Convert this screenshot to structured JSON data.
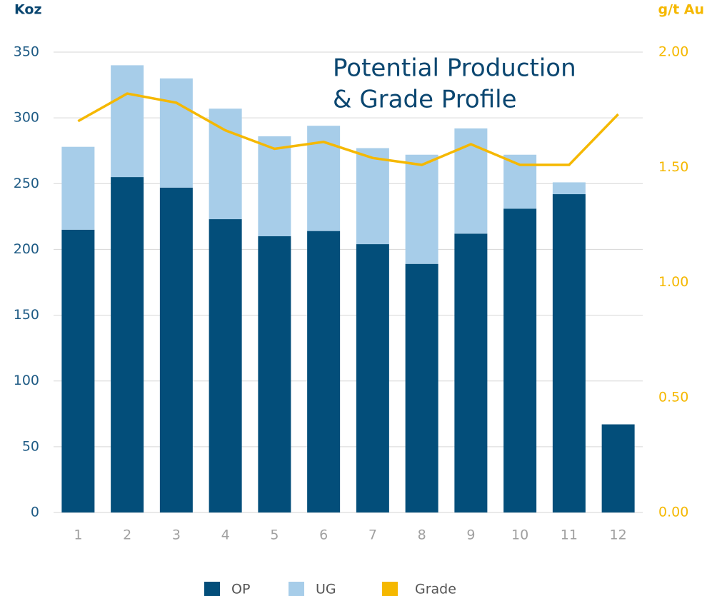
{
  "chart_data": {
    "type": "bar",
    "title": [
      "Potential Production",
      "& Grade Profile"
    ],
    "y_label": "Koz",
    "y2_label": "g/t Au",
    "categories": [
      1,
      2,
      3,
      4,
      5,
      6,
      7,
      8,
      9,
      10,
      11,
      12
    ],
    "stacked": true,
    "series": [
      {
        "name": "OP",
        "color": "#034e7a",
        "values": [
          215,
          255,
          247,
          223,
          210,
          214,
          204,
          189,
          212,
          231,
          242,
          67
        ]
      },
      {
        "name": "UG",
        "color": "#a7cde9",
        "values": [
          63,
          85,
          83,
          84,
          76,
          80,
          73,
          83,
          80,
          41,
          9,
          null
        ]
      },
      {
        "name": "Grade",
        "type": "line",
        "axis": "y2",
        "color": "#f5b800",
        "values": [
          1.7,
          1.82,
          1.78,
          1.66,
          1.58,
          1.61,
          1.54,
          1.51,
          1.6,
          1.51,
          1.51,
          1.73
        ]
      }
    ],
    "ylim": [
      0,
      350
    ],
    "yticks": [
      0,
      50,
      100,
      150,
      200,
      250,
      300,
      350
    ],
    "y2lim": [
      0,
      2
    ],
    "y2ticks": [
      {
        "value": 0,
        "label": "0.00"
      },
      {
        "value": 0.5,
        "label": "0.50"
      },
      {
        "value": 1,
        "label": "1.00"
      },
      {
        "value": 1.5,
        "label": "1.50"
      },
      {
        "value": 2,
        "label": "2.00"
      }
    ],
    "grid": true
  }
}
